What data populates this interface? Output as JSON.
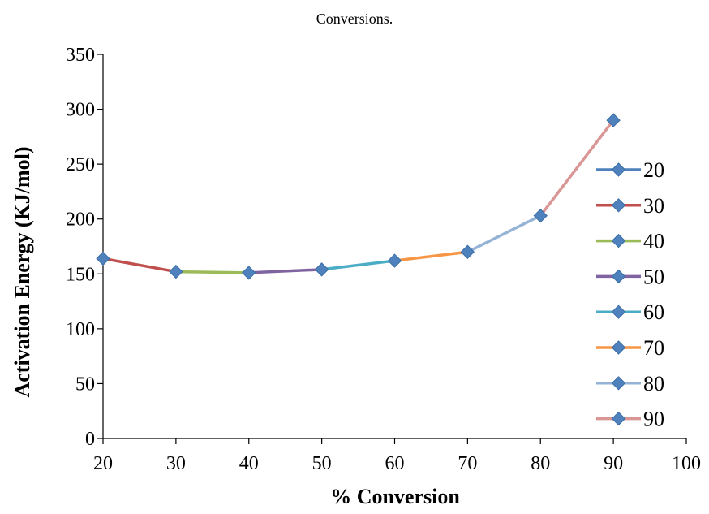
{
  "chart_data": {
    "type": "line",
    "title": "Conversions.",
    "xlabel": "% Conversion",
    "ylabel": "Activation Energy (KJ/mol)",
    "xlim": [
      20,
      100
    ],
    "ylim": [
      0,
      350
    ],
    "xticks": [
      20,
      30,
      40,
      50,
      60,
      70,
      80,
      90,
      100
    ],
    "yticks": [
      0,
      50,
      100,
      150,
      200,
      250,
      300,
      350
    ],
    "grid": false,
    "legend_position": "right",
    "marker": "diamond",
    "marker_color": "#4F81BD",
    "points": [
      {
        "x": 20,
        "y": 164
      },
      {
        "x": 30,
        "y": 152
      },
      {
        "x": 40,
        "y": 151
      },
      {
        "x": 50,
        "y": 154
      },
      {
        "x": 60,
        "y": 162
      },
      {
        "x": 70,
        "y": 170
      },
      {
        "x": 80,
        "y": 203
      },
      {
        "x": 90,
        "y": 290
      }
    ],
    "series": [
      {
        "name": "20",
        "color": "#4F81BD",
        "x": [
          20
        ],
        "values": [
          164
        ]
      },
      {
        "name": "30",
        "color": "#C0504D",
        "x": [
          20,
          30
        ],
        "values": [
          164,
          152
        ]
      },
      {
        "name": "40",
        "color": "#9BBB59",
        "x": [
          30,
          40
        ],
        "values": [
          152,
          151
        ]
      },
      {
        "name": "50",
        "color": "#8064A2",
        "x": [
          40,
          50
        ],
        "values": [
          151,
          154
        ]
      },
      {
        "name": "60",
        "color": "#4BACC6",
        "x": [
          50,
          60
        ],
        "values": [
          154,
          162
        ]
      },
      {
        "name": "70",
        "color": "#F79646",
        "x": [
          60,
          70
        ],
        "values": [
          162,
          170
        ]
      },
      {
        "name": "80",
        "color": "#95B3D7",
        "x": [
          70,
          80
        ],
        "values": [
          170,
          203
        ]
      },
      {
        "name": "90",
        "color": "#D99694",
        "x": [
          80,
          90
        ],
        "values": [
          203,
          290
        ]
      }
    ]
  }
}
